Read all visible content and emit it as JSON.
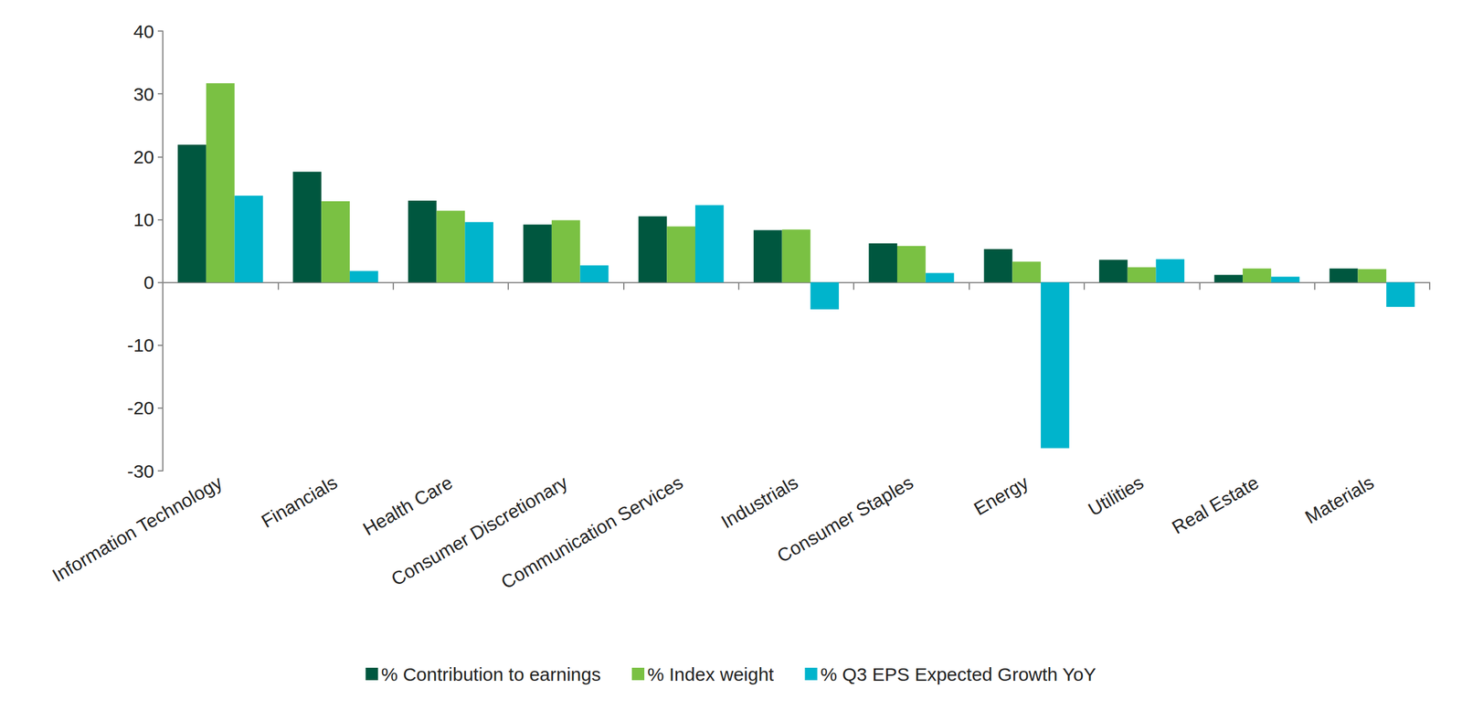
{
  "chart_data": {
    "type": "bar",
    "categories": [
      "Information Technology",
      "Financials",
      "Health Care",
      "Consumer Discretionary",
      "Communication Services",
      "Industrials",
      "Consumer Staples",
      "Energy",
      "Utilities",
      "Real Estate",
      "Materials"
    ],
    "series": [
      {
        "name": "% Contribution to earnings",
        "color": "#00573f",
        "values": [
          21.9,
          17.6,
          13.0,
          9.2,
          10.5,
          8.3,
          6.2,
          5.3,
          3.6,
          1.2,
          2.2
        ]
      },
      {
        "name": "% Index weight",
        "color": "#7ac143",
        "values": [
          31.7,
          12.9,
          11.4,
          9.9,
          8.9,
          8.4,
          5.8,
          3.3,
          2.4,
          2.2,
          2.1
        ]
      },
      {
        "name": "% Q3 EPS Expected Growth YoY",
        "color": "#00b4cc",
        "values": [
          13.8,
          1.8,
          9.6,
          2.7,
          12.3,
          -4.3,
          1.5,
          -26.4,
          3.7,
          0.9,
          -3.9
        ]
      }
    ],
    "ylim": [
      -30,
      40
    ],
    "yticks": [
      -30,
      -20,
      -10,
      0,
      10,
      20,
      30,
      40
    ],
    "grid": false,
    "legend": "bottom"
  }
}
